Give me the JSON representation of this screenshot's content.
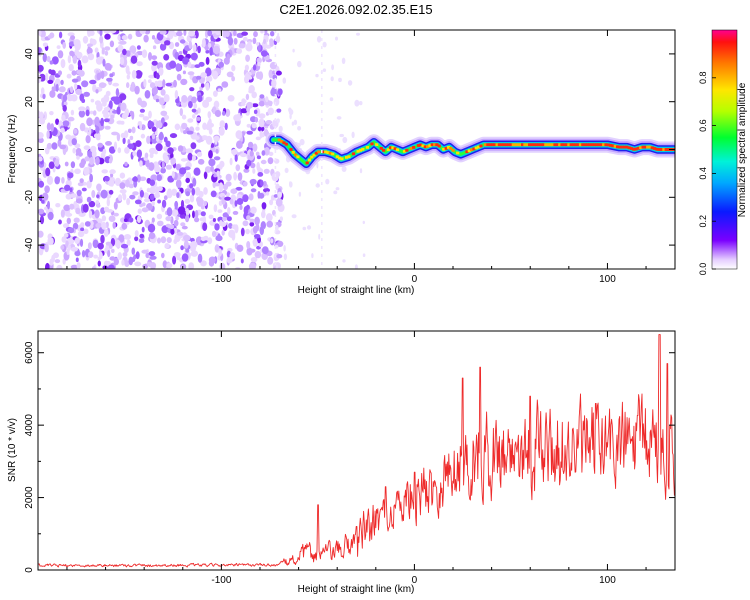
{
  "figure_title": "C2E1.2026.092.02.35.E15",
  "chart_data": [
    {
      "type": "heatmap",
      "title": "C2E1.2026.092.02.35.E15",
      "xlabel": "Height of straight line (km)",
      "ylabel": "Frequency (Hz)",
      "xlim": [
        -195,
        135
      ],
      "ylim": [
        -50,
        50
      ],
      "xticks": [
        -100,
        0,
        100
      ],
      "yticks": [
        -40,
        -20,
        0,
        20,
        40
      ],
      "xtick_labels": [
        "-100",
        "0",
        "100"
      ],
      "ytick_labels": [
        "-40",
        "-20",
        "0",
        "20",
        "40"
      ],
      "noise_region_x": [
        -195,
        -72
      ],
      "colorbar": {
        "label": "Normalized spectral amplitude",
        "range": [
          0,
          1
        ],
        "ticks": [
          0.0,
          0.2,
          0.4,
          0.6,
          0.8
        ],
        "tick_labels": [
          "0.0",
          "0.2",
          "0.4",
          "0.6",
          "0.8"
        ],
        "colormap": "rainbow"
      },
      "ridge": {
        "x": [
          -73,
          -70,
          -66,
          -62,
          -59,
          -56,
          -53,
          -50,
          -46,
          -42,
          -38,
          -34,
          -30,
          -27,
          -24,
          -21,
          -18,
          -15,
          -12,
          -9,
          -6,
          -3,
          0,
          3,
          6,
          9,
          12,
          15,
          18,
          21,
          24,
          27,
          30,
          33,
          36,
          40,
          50,
          60,
          70,
          80,
          90,
          100,
          106,
          110,
          114,
          118,
          122,
          126,
          130,
          135
        ],
        "freq": [
          4,
          4,
          2,
          -2,
          -4,
          -6,
          -3,
          -1,
          -1,
          -2,
          -4,
          -3,
          -1,
          0,
          1,
          3,
          1,
          -1,
          1,
          0,
          -1,
          0,
          1,
          2,
          1,
          2,
          2,
          0,
          1,
          -1,
          -2,
          -1,
          0,
          1,
          2,
          2,
          2,
          2,
          2,
          2,
          2,
          2,
          1,
          1,
          0,
          1,
          1,
          0,
          0,
          0
        ]
      }
    },
    {
      "type": "line",
      "xlabel": "Height of straight line (km)",
      "ylabel": "SNR (10 * v/v)",
      "xlim": [
        -195,
        135
      ],
      "ylim": [
        0,
        6600
      ],
      "xticks": [
        -100,
        0,
        100
      ],
      "yticks": [
        0,
        2000,
        4000,
        6000
      ],
      "xtick_labels": [
        "-100",
        "0",
        "100"
      ],
      "ytick_labels": [
        "0",
        "2000",
        "4000",
        "6000"
      ],
      "line_color": "#ee2a2a",
      "trend": {
        "x": [
          -195,
          -70,
          -62,
          -55,
          -50,
          -40,
          -30,
          -20,
          -10,
          0,
          10,
          20,
          30,
          40,
          50,
          60,
          80,
          100,
          120,
          135
        ],
        "snr": [
          120,
          140,
          300,
          500,
          450,
          500,
          850,
          1300,
          1700,
          2100,
          2350,
          2750,
          3100,
          3200,
          3300,
          3350,
          3350,
          3350,
          3500,
          3500
        ]
      },
      "peaks": [
        {
          "x": -50,
          "snr": 1800
        },
        {
          "x": -30,
          "snr": 1200
        },
        {
          "x": -15,
          "snr": 2300
        },
        {
          "x": 0,
          "snr": 2700
        },
        {
          "x": 25,
          "snr": 5300
        },
        {
          "x": 34,
          "snr": 5600
        },
        {
          "x": 60,
          "snr": 4800
        },
        {
          "x": 94,
          "snr": 4600
        },
        {
          "x": 127,
          "snr": 6500
        },
        {
          "x": 131,
          "snr": 5700
        }
      ]
    }
  ]
}
